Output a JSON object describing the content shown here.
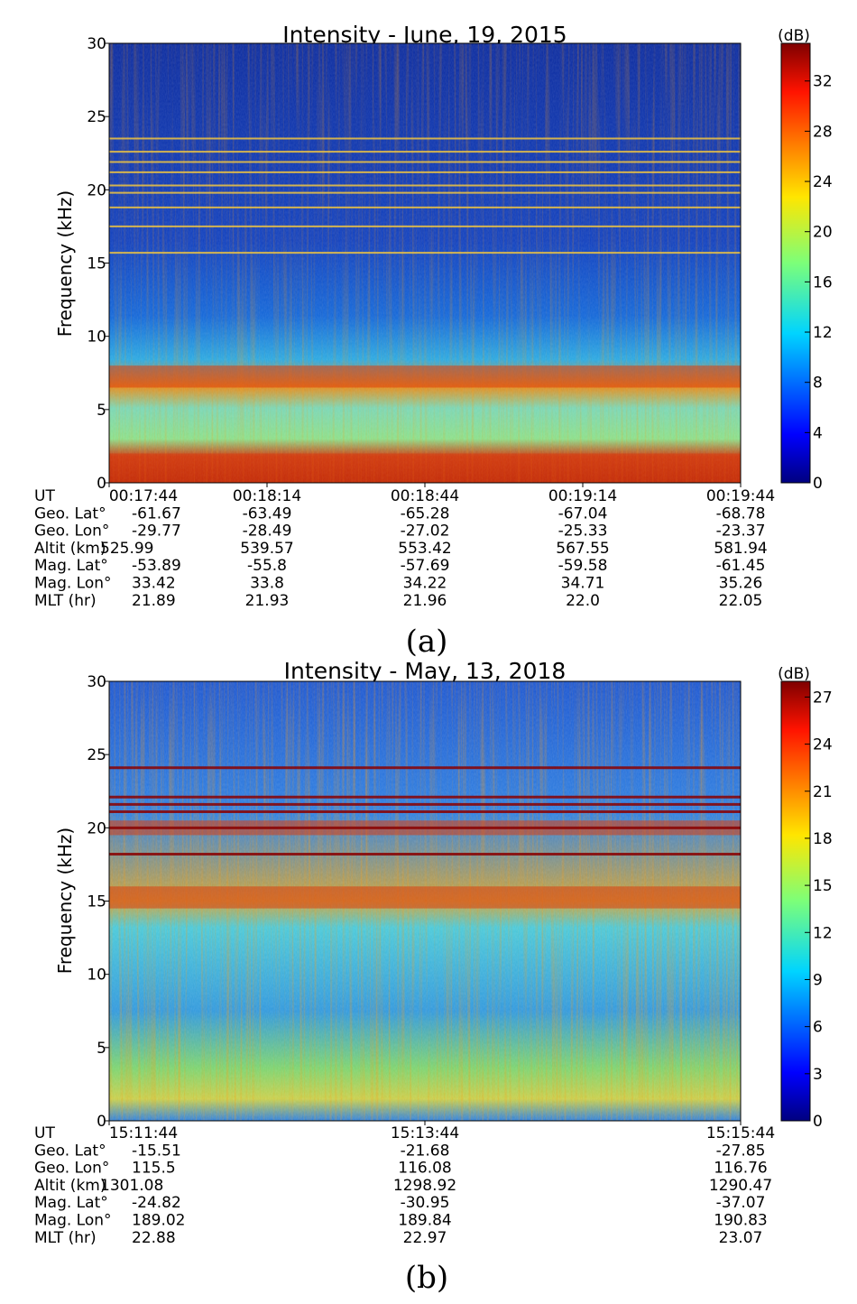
{
  "chart_data": [
    {
      "id": "a",
      "type": "heatmap",
      "title": "Intensity - June, 19, 2015",
      "ylabel": "Frequency (kHz)",
      "ylim": [
        0,
        30
      ],
      "yticks": [
        0,
        5,
        10,
        15,
        20,
        25,
        30
      ],
      "colorbar": {
        "label": "(dB)",
        "range": [
          0,
          35
        ],
        "ticks": [
          0,
          4,
          8,
          12,
          16,
          20,
          24,
          28,
          32
        ]
      },
      "caption": "(a)",
      "row_labels": [
        "UT",
        "Geo. Lat°",
        "Geo. Lon°",
        "Altit (km)",
        "Mag. Lat°",
        "Mag. Lon°",
        "MLT (hr)"
      ],
      "columns": [
        [
          "00:17:44",
          "-61.67",
          "-29.77",
          "525.99",
          "-53.89",
          "33.42",
          "21.89"
        ],
        [
          "00:18:14",
          "-63.49",
          "-28.49",
          "539.57",
          "-55.8",
          "33.8",
          "21.93"
        ],
        [
          "00:18:44",
          "-65.28",
          "-27.02",
          "553.42",
          "-57.69",
          "34.22",
          "21.96"
        ],
        [
          "00:19:14",
          "-67.04",
          "-25.33",
          "567.55",
          "-59.58",
          "34.71",
          "22.0"
        ],
        [
          "00:19:44",
          "-68.78",
          "-23.37",
          "581.94",
          "-61.45",
          "35.26",
          "22.05"
        ]
      ],
      "spectral_lines_khz": [
        23.5,
        22.6,
        21.9,
        21.2,
        20.3,
        19.8,
        18.8,
        17.5,
        15.7
      ],
      "bright_bands_khz": [
        [
          6.5,
          8
        ],
        [
          0,
          2
        ]
      ]
    },
    {
      "id": "b",
      "type": "heatmap",
      "title": "Intensity - May, 13, 2018",
      "ylabel": "Frequency (kHz)",
      "ylim": [
        0,
        30
      ],
      "yticks": [
        0,
        5,
        10,
        15,
        20,
        25,
        30
      ],
      "colorbar": {
        "label": "(dB)",
        "range": [
          0,
          28
        ],
        "ticks": [
          0,
          3,
          6,
          9,
          12,
          15,
          18,
          21,
          24,
          27
        ]
      },
      "caption": "(b)",
      "row_labels": [
        "UT",
        "Geo. Lat°",
        "Geo. Lon°",
        "Altit (km)",
        "Mag. Lat°",
        "Mag. Lon°",
        "MLT (hr)"
      ],
      "columns": [
        [
          "15:11:44",
          "-15.51",
          "115.5",
          "1301.08",
          "-24.82",
          "189.02",
          "22.88"
        ],
        [
          "15:13:44",
          "-21.68",
          "116.08",
          "1298.92",
          "-30.95",
          "189.84",
          "22.97"
        ],
        [
          "15:15:44",
          "-27.85",
          "116.76",
          "1290.47",
          "-37.07",
          "190.83",
          "23.07"
        ]
      ],
      "spectral_lines_khz": [
        24.1,
        22.1,
        21.6,
        21.1,
        20.0,
        18.2
      ],
      "bright_bands_khz": [
        [
          19.5,
          20.5
        ],
        [
          14.5,
          16
        ]
      ]
    }
  ]
}
